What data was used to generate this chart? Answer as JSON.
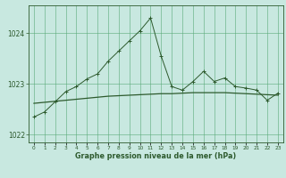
{
  "title": "Graphe pression niveau de la mer (hPa)",
  "background_color": "#c8e8e0",
  "grid_color": "#5aaa78",
  "line_color": "#2d5a2d",
  "hours": [
    0,
    1,
    2,
    3,
    4,
    5,
    6,
    7,
    8,
    9,
    10,
    11,
    12,
    13,
    14,
    15,
    16,
    17,
    18,
    19,
    20,
    21,
    22,
    23
  ],
  "pressure": [
    1022.35,
    1022.45,
    1022.65,
    1022.85,
    1022.95,
    1023.1,
    1023.2,
    1023.45,
    1023.65,
    1023.85,
    1024.05,
    1024.3,
    1023.55,
    1022.95,
    1022.88,
    1023.05,
    1023.25,
    1023.05,
    1023.12,
    1022.95,
    1022.92,
    1022.88,
    1022.68,
    1022.82
  ],
  "smooth": [
    1022.62,
    1022.64,
    1022.66,
    1022.68,
    1022.7,
    1022.72,
    1022.74,
    1022.76,
    1022.77,
    1022.78,
    1022.79,
    1022.8,
    1022.81,
    1022.81,
    1022.82,
    1022.83,
    1022.83,
    1022.83,
    1022.83,
    1022.82,
    1022.81,
    1022.8,
    1022.79,
    1022.78
  ],
  "ylim": [
    1021.85,
    1024.55
  ],
  "yticks": [
    1022,
    1023,
    1024
  ],
  "xlim": [
    -0.5,
    23.5
  ],
  "figsize": [
    3.2,
    2.0
  ],
  "dpi": 100
}
